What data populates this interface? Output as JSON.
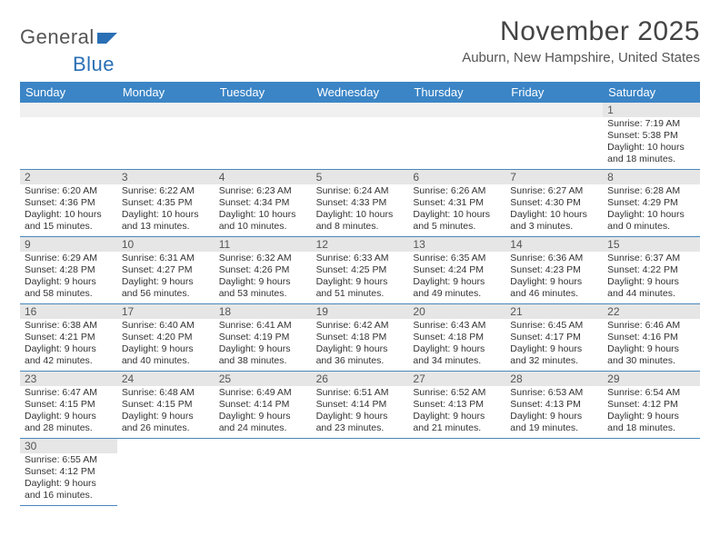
{
  "logo": {
    "part1": "General",
    "part2": "Blue",
    "color1": "#555555",
    "color2": "#2a6fb5"
  },
  "title": "November 2025",
  "location": "Auburn, New Hampshire, United States",
  "header_bg": "#3b85c6",
  "daynum_bg": "#e6e6e6",
  "border_color": "#4a87bc",
  "day_names": [
    "Sunday",
    "Monday",
    "Tuesday",
    "Wednesday",
    "Thursday",
    "Friday",
    "Saturday"
  ],
  "weeks": [
    [
      null,
      null,
      null,
      null,
      null,
      null,
      {
        "n": "1",
        "sr": "Sunrise: 7:19 AM",
        "ss": "Sunset: 5:38 PM",
        "dl": "Daylight: 10 hours and 18 minutes."
      }
    ],
    [
      {
        "n": "2",
        "sr": "Sunrise: 6:20 AM",
        "ss": "Sunset: 4:36 PM",
        "dl": "Daylight: 10 hours and 15 minutes."
      },
      {
        "n": "3",
        "sr": "Sunrise: 6:22 AM",
        "ss": "Sunset: 4:35 PM",
        "dl": "Daylight: 10 hours and 13 minutes."
      },
      {
        "n": "4",
        "sr": "Sunrise: 6:23 AM",
        "ss": "Sunset: 4:34 PM",
        "dl": "Daylight: 10 hours and 10 minutes."
      },
      {
        "n": "5",
        "sr": "Sunrise: 6:24 AM",
        "ss": "Sunset: 4:33 PM",
        "dl": "Daylight: 10 hours and 8 minutes."
      },
      {
        "n": "6",
        "sr": "Sunrise: 6:26 AM",
        "ss": "Sunset: 4:31 PM",
        "dl": "Daylight: 10 hours and 5 minutes."
      },
      {
        "n": "7",
        "sr": "Sunrise: 6:27 AM",
        "ss": "Sunset: 4:30 PM",
        "dl": "Daylight: 10 hours and 3 minutes."
      },
      {
        "n": "8",
        "sr": "Sunrise: 6:28 AM",
        "ss": "Sunset: 4:29 PM",
        "dl": "Daylight: 10 hours and 0 minutes."
      }
    ],
    [
      {
        "n": "9",
        "sr": "Sunrise: 6:29 AM",
        "ss": "Sunset: 4:28 PM",
        "dl": "Daylight: 9 hours and 58 minutes."
      },
      {
        "n": "10",
        "sr": "Sunrise: 6:31 AM",
        "ss": "Sunset: 4:27 PM",
        "dl": "Daylight: 9 hours and 56 minutes."
      },
      {
        "n": "11",
        "sr": "Sunrise: 6:32 AM",
        "ss": "Sunset: 4:26 PM",
        "dl": "Daylight: 9 hours and 53 minutes."
      },
      {
        "n": "12",
        "sr": "Sunrise: 6:33 AM",
        "ss": "Sunset: 4:25 PM",
        "dl": "Daylight: 9 hours and 51 minutes."
      },
      {
        "n": "13",
        "sr": "Sunrise: 6:35 AM",
        "ss": "Sunset: 4:24 PM",
        "dl": "Daylight: 9 hours and 49 minutes."
      },
      {
        "n": "14",
        "sr": "Sunrise: 6:36 AM",
        "ss": "Sunset: 4:23 PM",
        "dl": "Daylight: 9 hours and 46 minutes."
      },
      {
        "n": "15",
        "sr": "Sunrise: 6:37 AM",
        "ss": "Sunset: 4:22 PM",
        "dl": "Daylight: 9 hours and 44 minutes."
      }
    ],
    [
      {
        "n": "16",
        "sr": "Sunrise: 6:38 AM",
        "ss": "Sunset: 4:21 PM",
        "dl": "Daylight: 9 hours and 42 minutes."
      },
      {
        "n": "17",
        "sr": "Sunrise: 6:40 AM",
        "ss": "Sunset: 4:20 PM",
        "dl": "Daylight: 9 hours and 40 minutes."
      },
      {
        "n": "18",
        "sr": "Sunrise: 6:41 AM",
        "ss": "Sunset: 4:19 PM",
        "dl": "Daylight: 9 hours and 38 minutes."
      },
      {
        "n": "19",
        "sr": "Sunrise: 6:42 AM",
        "ss": "Sunset: 4:18 PM",
        "dl": "Daylight: 9 hours and 36 minutes."
      },
      {
        "n": "20",
        "sr": "Sunrise: 6:43 AM",
        "ss": "Sunset: 4:18 PM",
        "dl": "Daylight: 9 hours and 34 minutes."
      },
      {
        "n": "21",
        "sr": "Sunrise: 6:45 AM",
        "ss": "Sunset: 4:17 PM",
        "dl": "Daylight: 9 hours and 32 minutes."
      },
      {
        "n": "22",
        "sr": "Sunrise: 6:46 AM",
        "ss": "Sunset: 4:16 PM",
        "dl": "Daylight: 9 hours and 30 minutes."
      }
    ],
    [
      {
        "n": "23",
        "sr": "Sunrise: 6:47 AM",
        "ss": "Sunset: 4:15 PM",
        "dl": "Daylight: 9 hours and 28 minutes."
      },
      {
        "n": "24",
        "sr": "Sunrise: 6:48 AM",
        "ss": "Sunset: 4:15 PM",
        "dl": "Daylight: 9 hours and 26 minutes."
      },
      {
        "n": "25",
        "sr": "Sunrise: 6:49 AM",
        "ss": "Sunset: 4:14 PM",
        "dl": "Daylight: 9 hours and 24 minutes."
      },
      {
        "n": "26",
        "sr": "Sunrise: 6:51 AM",
        "ss": "Sunset: 4:14 PM",
        "dl": "Daylight: 9 hours and 23 minutes."
      },
      {
        "n": "27",
        "sr": "Sunrise: 6:52 AM",
        "ss": "Sunset: 4:13 PM",
        "dl": "Daylight: 9 hours and 21 minutes."
      },
      {
        "n": "28",
        "sr": "Sunrise: 6:53 AM",
        "ss": "Sunset: 4:13 PM",
        "dl": "Daylight: 9 hours and 19 minutes."
      },
      {
        "n": "29",
        "sr": "Sunrise: 6:54 AM",
        "ss": "Sunset: 4:12 PM",
        "dl": "Daylight: 9 hours and 18 minutes."
      }
    ],
    [
      {
        "n": "30",
        "sr": "Sunrise: 6:55 AM",
        "ss": "Sunset: 4:12 PM",
        "dl": "Daylight: 9 hours and 16 minutes."
      },
      null,
      null,
      null,
      null,
      null,
      null
    ]
  ]
}
